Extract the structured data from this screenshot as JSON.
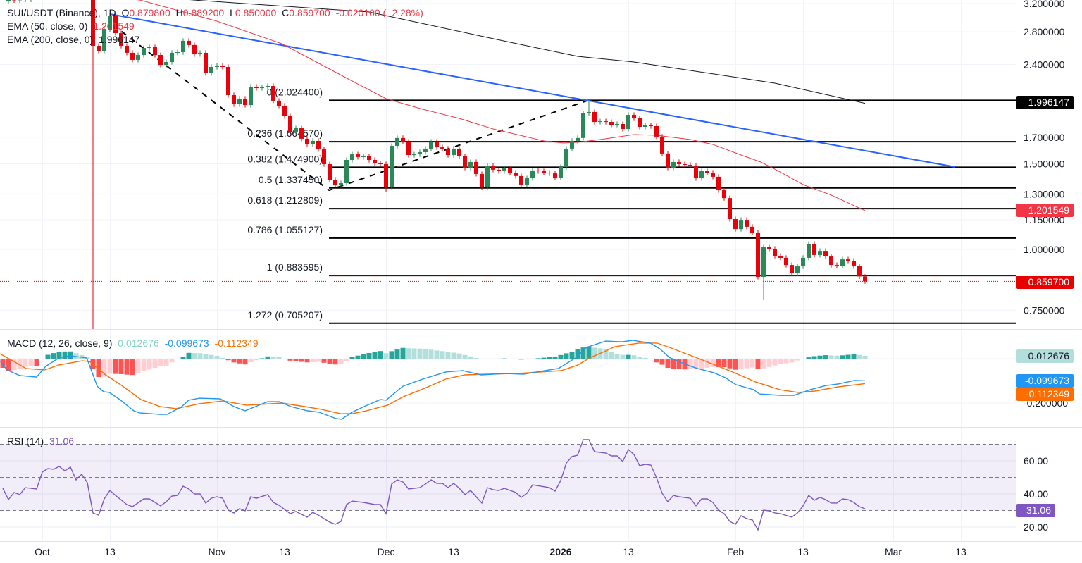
{
  "header": {
    "symbol": "SUI/USDT (Binance), 1D",
    "open_label": "O",
    "open": "0.879800",
    "high_label": "H",
    "high": "0.889200",
    "low_label": "L",
    "low": "0.850000",
    "close_label": "C",
    "close": "0.859700",
    "change": "-0.020100 (−2.28%)",
    "ema50_label": "EMA (50, close, 0)",
    "ema50_value": "1.201549",
    "ema200_label": "EMA (200, close, 0)",
    "ema200_value": "1.996147"
  },
  "price_axis": {
    "ticks": [
      "3.200000",
      "2.800000",
      "2.400000",
      "1.700000",
      "1.500000",
      "1.300000",
      "1.150000",
      "1.000000",
      "0.750000"
    ],
    "badges": {
      "ema200": "1.996147",
      "ema50": "1.201549",
      "last": "0.859700"
    }
  },
  "time_axis": {
    "labels": [
      "Oct",
      "13",
      "Nov",
      "13",
      "Dec",
      "13",
      "2026",
      "13",
      "Feb",
      "13",
      "Mar",
      "13"
    ]
  },
  "fib_levels": [
    {
      "label": "0 (2.024400)",
      "price": 2.0244
    },
    {
      "label": "0.236 (1.664570)",
      "price": 1.66457
    },
    {
      "label": "0.382 (1.474900)",
      "price": 1.4749
    },
    {
      "label": "0.5 (1.337450)",
      "price": 1.33745
    },
    {
      "label": "0.618 (1.212809)",
      "price": 1.212809
    },
    {
      "label": "0.786 (1.055127)",
      "price": 1.055127
    },
    {
      "label": "1 (0.883595)",
      "price": 0.883595
    },
    {
      "label": "1.272 (0.705207)",
      "price": 0.705207
    }
  ],
  "macd": {
    "label": "MACD (12, 26, close, 9)",
    "hist_value": "0.012676",
    "macd_value": "-0.099673",
    "signal_value": "-0.112349",
    "axis_tick": "-0.200000"
  },
  "rsi": {
    "label": "RSI (14)",
    "value": "31.06",
    "ticks": [
      "60.00",
      "40.00",
      "20.00"
    ]
  },
  "colors": {
    "up": "#2a8a57",
    "down": "#e8000b",
    "ema50": "#f23645",
    "ema200": "#131722",
    "trend": "#2962ff",
    "macd": "#2196f3",
    "signal": "#ff6d00",
    "rsi": "#7e57c2"
  },
  "chart_data": {
    "type": "candlestick",
    "title": "SUI/USDT (Binance), 1D",
    "scale": "log",
    "ylim": [
      0.66,
      3.25
    ],
    "first_candle_date": "2025-09-24",
    "closes": [
      3.24,
      3.27,
      3.25,
      3.28,
      3.26,
      3.5,
      3.62,
      3.7,
      3.78,
      3.85,
      3.8,
      3.74,
      3.82,
      3.9,
      3.75,
      3.6,
      2.62,
      2.56,
      2.829,
      3.025,
      2.782,
      2.62,
      2.535,
      2.452,
      2.509,
      2.594,
      2.603,
      2.509,
      2.394,
      2.427,
      2.535,
      2.543,
      2.683,
      2.63,
      2.518,
      2.535,
      2.301,
      2.371,
      2.387,
      2.371,
      2.075,
      1.987,
      2.041,
      1.98,
      2.16,
      2.145,
      2.155,
      2.167,
      2.021,
      1.974,
      1.878,
      1.745,
      1.774,
      1.688,
      1.643,
      1.671,
      1.605,
      1.497,
      1.391,
      1.354,
      1.368,
      1.527,
      1.568,
      1.548,
      1.553,
      1.527,
      1.502,
      1.497,
      1.345,
      1.632,
      1.694,
      1.665,
      1.563,
      1.568,
      1.584,
      1.611,
      1.665,
      1.621,
      1.611,
      1.563,
      1.611,
      1.553,
      1.472,
      1.512,
      1.429,
      1.341,
      1.487,
      1.458,
      1.448,
      1.467,
      1.438,
      1.415,
      1.359,
      1.4,
      1.453,
      1.448,
      1.438,
      1.433,
      1.405,
      1.477,
      1.611,
      1.671,
      1.694,
      1.903,
      1.916,
      1.828,
      1.834,
      1.828,
      1.804,
      1.81,
      1.768,
      1.89,
      1.859,
      1.786,
      1.798,
      1.792,
      1.705,
      1.574,
      1.472,
      1.512,
      1.497,
      1.492,
      1.487,
      1.4,
      1.448,
      1.438,
      1.41,
      1.323,
      1.275,
      1.154,
      1.101,
      1.15,
      1.113,
      1.083,
      0.878,
      1.013,
      1.003,
      0.97,
      0.961,
      0.929,
      0.893,
      0.923,
      0.961,
      1.027,
      0.974,
      0.993,
      0.967,
      0.929,
      0.926,
      0.954,
      0.948,
      0.923,
      0.8798,
      0.8597
    ],
    "wick_overrides": [
      {
        "day": 16,
        "low": 0.55
      },
      {
        "day": 19,
        "high": 3.06
      },
      {
        "day": 68,
        "low": 1.31
      },
      {
        "day": 104,
        "high": 2.0244
      },
      {
        "day": 135,
        "low": 0.787
      },
      {
        "day": 153,
        "high": 0.8892,
        "low": 0.85
      }
    ],
    "ema50": [
      [
        -7,
        3.6
      ],
      [
        17.5,
        3.25
      ],
      [
        31,
        2.945
      ],
      [
        42.5,
        2.647
      ],
      [
        55,
        2.218
      ],
      [
        61,
        2.041
      ],
      [
        67.5,
        1.941
      ],
      [
        74,
        1.859
      ],
      [
        80,
        1.768
      ],
      [
        89,
        1.671
      ],
      [
        92.5,
        1.654
      ],
      [
        95,
        1.66
      ],
      [
        99,
        1.682
      ],
      [
        105,
        1.722
      ],
      [
        109,
        1.716
      ],
      [
        115,
        1.682
      ],
      [
        119,
        1.643
      ],
      [
        124,
        1.563
      ],
      [
        127.5,
        1.512
      ],
      [
        130,
        1.462
      ],
      [
        135,
        1.359
      ],
      [
        140,
        1.293
      ],
      [
        146,
        1.201549
      ]
    ],
    "ema200": [
      [
        -7,
        3.5
      ],
      [
        27.5,
        3.25
      ],
      [
        58,
        3.075
      ],
      [
        80,
        2.71
      ],
      [
        95,
        2.493
      ],
      [
        105,
        2.427
      ],
      [
        117.5,
        2.309
      ],
      [
        130,
        2.196
      ],
      [
        146,
        1.996147
      ]
    ],
    "trendline": [
      [
        12,
        3.044
      ],
      [
        162,
        1.477
      ]
    ],
    "fib_path": [
      [
        12.5,
        2.896
      ],
      [
        50.9,
        1.323
      ],
      [
        96.9,
        2.0244
      ]
    ],
    "macd_line": [
      [
        -7.5,
        -0.01
      ],
      [
        -6.25,
        -0.051
      ],
      [
        -4,
        -0.076
      ],
      [
        -1,
        -0.083
      ],
      [
        0.6,
        -0.035
      ],
      [
        2.9,
        0.003
      ],
      [
        5,
        0.013
      ],
      [
        7.9,
        0.003
      ],
      [
        9.75,
        -0.124
      ],
      [
        10.9,
        -0.149
      ],
      [
        11.9,
        -0.152
      ],
      [
        13.75,
        -0.184
      ],
      [
        16.25,
        -0.235
      ],
      [
        17.25,
        -0.244
      ],
      [
        20.9,
        -0.251
      ],
      [
        22.1,
        -0.251
      ],
      [
        24.6,
        -0.219
      ],
      [
        26,
        -0.187
      ],
      [
        27.9,
        -0.178
      ],
      [
        31.6,
        -0.181
      ],
      [
        34,
        -0.216
      ],
      [
        36,
        -0.235
      ],
      [
        38.4,
        -0.21
      ],
      [
        40,
        -0.194
      ],
      [
        42.1,
        -0.194
      ],
      [
        44.1,
        -0.216
      ],
      [
        47.1,
        -0.235
      ],
      [
        49.1,
        -0.241
      ],
      [
        52.1,
        -0.27
      ],
      [
        53.1,
        -0.273
      ],
      [
        55,
        -0.241
      ],
      [
        57.1,
        -0.216
      ],
      [
        60,
        -0.184
      ],
      [
        61,
        -0.187
      ],
      [
        64,
        -0.124
      ],
      [
        67.5,
        -0.092
      ],
      [
        71.6,
        -0.06
      ],
      [
        74.6,
        -0.054
      ],
      [
        77.9,
        -0.073
      ],
      [
        82.1,
        -0.067
      ],
      [
        85.4,
        -0.07
      ],
      [
        88.4,
        -0.057
      ],
      [
        91.6,
        -0.044
      ],
      [
        94.6,
        0.003
      ],
      [
        96.6,
        0.051
      ],
      [
        100,
        0.079
      ],
      [
        102.9,
        0.076
      ],
      [
        104.75,
        0.083
      ],
      [
        107.9,
        0.07
      ],
      [
        109.6,
        0.044
      ],
      [
        111.25,
        0.006
      ],
      [
        114.1,
        -0.025
      ],
      [
        116.25,
        -0.044
      ],
      [
        119.1,
        -0.063
      ],
      [
        121.25,
        -0.086
      ],
      [
        123.1,
        -0.117
      ],
      [
        126.25,
        -0.14
      ],
      [
        127.25,
        -0.159
      ],
      [
        130.9,
        -0.165
      ],
      [
        133.4,
        -0.165
      ],
      [
        136.25,
        -0.14
      ],
      [
        139.1,
        -0.121
      ],
      [
        141.25,
        -0.114
      ],
      [
        144.1,
        -0.098
      ],
      [
        146,
        -0.099673
      ]
    ],
    "signal_line": [
      [
        -7.5,
        0.022
      ],
      [
        -5,
        -0.013
      ],
      [
        -2.9,
        -0.044
      ],
      [
        0.4,
        -0.051
      ],
      [
        2.9,
        -0.029
      ],
      [
        7.1,
        -0.01
      ],
      [
        8.4,
        -0.013
      ],
      [
        11.25,
        -0.073
      ],
      [
        14.1,
        -0.121
      ],
      [
        17.5,
        -0.184
      ],
      [
        20.9,
        -0.216
      ],
      [
        23.75,
        -0.225
      ],
      [
        27.9,
        -0.203
      ],
      [
        32.1,
        -0.19
      ],
      [
        36.25,
        -0.21
      ],
      [
        42.5,
        -0.2
      ],
      [
        46.6,
        -0.216
      ],
      [
        49.6,
        -0.229
      ],
      [
        52.9,
        -0.248
      ],
      [
        55,
        -0.248
      ],
      [
        57.5,
        -0.235
      ],
      [
        61.25,
        -0.21
      ],
      [
        64.1,
        -0.171
      ],
      [
        67.5,
        -0.137
      ],
      [
        71.6,
        -0.092
      ],
      [
        75,
        -0.073
      ],
      [
        78.75,
        -0.07
      ],
      [
        84.1,
        -0.067
      ],
      [
        88.4,
        -0.06
      ],
      [
        92.1,
        -0.054
      ],
      [
        95,
        -0.029
      ],
      [
        97.1,
        0.003
      ],
      [
        100,
        0.035
      ],
      [
        101.6,
        0.054
      ],
      [
        105.9,
        0.07
      ],
      [
        109.1,
        0.07
      ],
      [
        111.25,
        0.051
      ],
      [
        116.25,
        0.003
      ],
      [
        122.5,
        -0.06
      ],
      [
        126.6,
        -0.105
      ],
      [
        130.9,
        -0.14
      ],
      [
        134.1,
        -0.152
      ],
      [
        137.1,
        -0.146
      ],
      [
        141.25,
        -0.127
      ],
      [
        146,
        -0.112349
      ]
    ],
    "rsi": [
      [
        -7,
        43.4
      ],
      [
        -6,
        36.6
      ],
      [
        -5,
        40.9
      ],
      [
        -4,
        39.6
      ],
      [
        -3,
        43.8
      ],
      [
        -1,
        43
      ],
      [
        0,
        53.2
      ],
      [
        1,
        55.3
      ],
      [
        2,
        54.9
      ],
      [
        3,
        56.6
      ],
      [
        4,
        54
      ],
      [
        5,
        56.2
      ],
      [
        6,
        48.5
      ],
      [
        7,
        51.9
      ],
      [
        8,
        46.8
      ],
      [
        9,
        28.5
      ],
      [
        10,
        27.2
      ],
      [
        11,
        37
      ],
      [
        12,
        42.1
      ],
      [
        13,
        39.1
      ],
      [
        15,
        33.6
      ],
      [
        16,
        32.3
      ],
      [
        18,
        37
      ],
      [
        19,
        37
      ],
      [
        21,
        32.8
      ],
      [
        22,
        35.3
      ],
      [
        23,
        38.7
      ],
      [
        24,
        39.1
      ],
      [
        25,
        44.7
      ],
      [
        26,
        43
      ],
      [
        27,
        40
      ],
      [
        28,
        40
      ],
      [
        29,
        34.5
      ],
      [
        30,
        37.4
      ],
      [
        31,
        38.3
      ],
      [
        32,
        37.4
      ],
      [
        33,
        30.2
      ],
      [
        34,
        28.5
      ],
      [
        35,
        31.1
      ],
      [
        36,
        29.8
      ],
      [
        37,
        38.3
      ],
      [
        38,
        37.4
      ],
      [
        40,
        39.6
      ],
      [
        41,
        34.9
      ],
      [
        42,
        33.2
      ],
      [
        44,
        28.1
      ],
      [
        45,
        29.4
      ],
      [
        47,
        26
      ],
      [
        48,
        28.9
      ],
      [
        49,
        27.2
      ],
      [
        51,
        23
      ],
      [
        52,
        21.7
      ],
      [
        53,
        23.4
      ],
      [
        54,
        33.6
      ],
      [
        55,
        35.7
      ],
      [
        57,
        34.9
      ],
      [
        59,
        33.6
      ],
      [
        60,
        33.6
      ],
      [
        61,
        28.1
      ],
      [
        62,
        46
      ],
      [
        63,
        48.5
      ],
      [
        64,
        47.2
      ],
      [
        65,
        43
      ],
      [
        67,
        43.8
      ],
      [
        68,
        46
      ],
      [
        69,
        48.5
      ],
      [
        70,
        46.4
      ],
      [
        71,
        46.4
      ],
      [
        72,
        43.8
      ],
      [
        73,
        46.4
      ],
      [
        74,
        43.4
      ],
      [
        75,
        39.6
      ],
      [
        76,
        42.1
      ],
      [
        77,
        38.3
      ],
      [
        78,
        34.5
      ],
      [
        79,
        43.8
      ],
      [
        80,
        42.6
      ],
      [
        81,
        42.1
      ],
      [
        82,
        43.4
      ],
      [
        84,
        40.9
      ],
      [
        85,
        37.9
      ],
      [
        86,
        40.4
      ],
      [
        87,
        45.5
      ],
      [
        90,
        43.8
      ],
      [
        91,
        41.7
      ],
      [
        92,
        48.1
      ],
      [
        93,
        58.7
      ],
      [
        94,
        62.6
      ],
      [
        95,
        63.4
      ],
      [
        96,
        72.8
      ],
      [
        97,
        72.8
      ],
      [
        98,
        65.5
      ],
      [
        100,
        64.7
      ],
      [
        101,
        63
      ],
      [
        102,
        63
      ],
      [
        103,
        59.6
      ],
      [
        104,
        66.8
      ],
      [
        105,
        63.8
      ],
      [
        106,
        57
      ],
      [
        107,
        57.9
      ],
      [
        108,
        57.4
      ],
      [
        109,
        49.8
      ],
      [
        110,
        40.4
      ],
      [
        111,
        35.3
      ],
      [
        112,
        39.1
      ],
      [
        113,
        38.3
      ],
      [
        115,
        37.4
      ],
      [
        116,
        32.8
      ],
      [
        117,
        37
      ],
      [
        118,
        37
      ],
      [
        119,
        34.9
      ],
      [
        120,
        30.2
      ],
      [
        121,
        28.1
      ],
      [
        122,
        23.4
      ],
      [
        123,
        21.7
      ],
      [
        124,
        26.8
      ],
      [
        125,
        25.1
      ],
      [
        126,
        24.3
      ],
      [
        127,
        18.3
      ],
      [
        128,
        30.2
      ],
      [
        129,
        29.8
      ],
      [
        130,
        28.5
      ],
      [
        131,
        28.1
      ],
      [
        133,
        26
      ],
      [
        134,
        28.5
      ],
      [
        135,
        32.8
      ],
      [
        136,
        39.1
      ],
      [
        137,
        36.2
      ],
      [
        138,
        37.9
      ],
      [
        139,
        36.6
      ],
      [
        140,
        34.5
      ],
      [
        141,
        34.5
      ],
      [
        142,
        37
      ],
      [
        143,
        36.6
      ],
      [
        144,
        34.9
      ],
      [
        145,
        32.3
      ],
      [
        146,
        31.06
      ]
    ],
    "rsi_levels": [
      70,
      50,
      30
    ]
  }
}
